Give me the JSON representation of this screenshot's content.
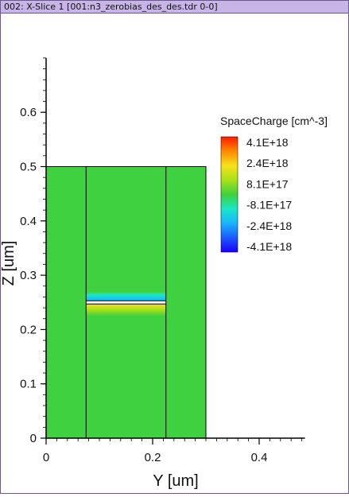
{
  "window": {
    "title": "002: X-Slice 1 [001:n3_zerobias_des_des.tdr 0-0]"
  },
  "colors": {
    "title_bar": "#c8b4e6",
    "region_fill": "#3fd13f",
    "outline": "#000000"
  },
  "chart_data": {
    "type": "heatmap",
    "x_axis": {
      "label": "Y [um]",
      "range": [
        0,
        0.5
      ],
      "ticks": [
        0,
        0.2,
        0.4
      ],
      "tick_labels": [
        "0",
        "0.2",
        "0.4"
      ]
    },
    "y_axis": {
      "label": "Z [um]",
      "range": [
        0,
        0.7
      ],
      "ticks": [
        0,
        0.1,
        0.2,
        0.3,
        0.4,
        0.5,
        0.6
      ],
      "tick_labels": [
        "0",
        "0.1",
        "0.2",
        "0.3",
        "0.4",
        "0.5",
        "0.6"
      ]
    },
    "domain": {
      "y": [
        0,
        0.3
      ],
      "z": [
        0,
        0.5
      ]
    },
    "region_boundaries_y": [
      0.075,
      0.225
    ],
    "interface": {
      "z": 0.25,
      "y_range": [
        0.075,
        0.225
      ]
    },
    "features": [
      {
        "name": "negative charge band",
        "y_range": [
          0.075,
          0.225
        ],
        "z_range": [
          0.253,
          0.27
        ],
        "level": "-8.1E+17"
      },
      {
        "name": "positive charge band",
        "y_range": [
          0.075,
          0.225
        ],
        "z_range": [
          0.225,
          0.247
        ],
        "level": "8.1E+17"
      }
    ],
    "legend": {
      "title": "SpaceCharge [cm^-3]",
      "labels": [
        "4.1E+18",
        "2.4E+18",
        "8.1E+17",
        "-8.1E+17",
        "-2.4E+18",
        "-4.1E+18"
      ],
      "gradient": [
        "#ff1a00",
        "#ff8a00",
        "#f5e21a",
        "#a8e21a",
        "#3fd13f",
        "#1ae6c8",
        "#1ab4ff",
        "#1a5aff",
        "#1a00ff"
      ]
    }
  }
}
